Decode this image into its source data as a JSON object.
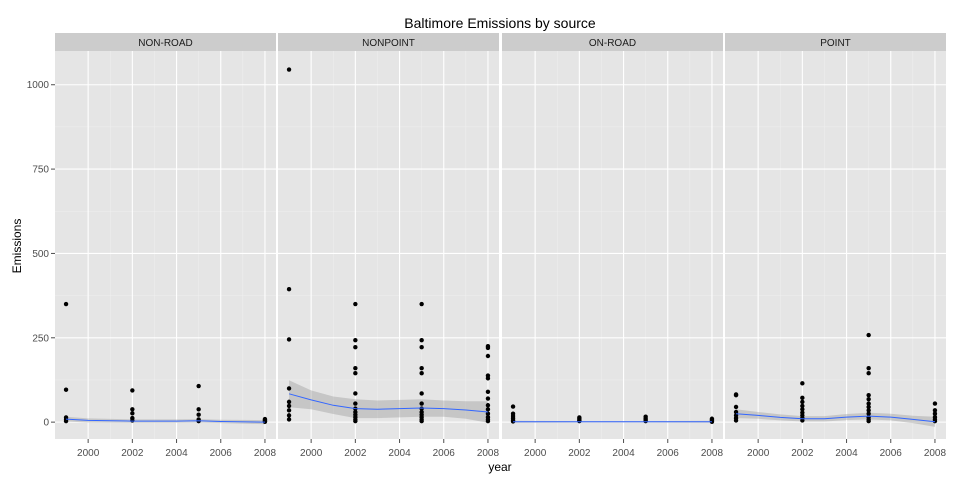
{
  "chart_data": {
    "type": "scatter",
    "title": "Baltimore Emissions by source",
    "xlabel": "year",
    "ylabel": "Emissions",
    "xlim": [
      1998.5,
      2008.5
    ],
    "ylim": [
      -50,
      1100
    ],
    "x_ticks": [
      2000,
      2002,
      2004,
      2006,
      2008
    ],
    "y_ticks": [
      0,
      250,
      500,
      750,
      1000
    ],
    "grid": true,
    "smoother_color": "#3366FF",
    "band_color": "#999999",
    "panel_bg": "#E5E5E5",
    "strip_bg": "#CCCCCC",
    "panels": [
      {
        "name": "NON-ROAD",
        "points": [
          {
            "x": 1999,
            "y": 350
          },
          {
            "x": 1999,
            "y": 96
          },
          {
            "x": 1999,
            "y": 14
          },
          {
            "x": 1999,
            "y": 8
          },
          {
            "x": 1999,
            "y": 3
          },
          {
            "x": 2002,
            "y": 94
          },
          {
            "x": 2002,
            "y": 38
          },
          {
            "x": 2002,
            "y": 26
          },
          {
            "x": 2002,
            "y": 12
          },
          {
            "x": 2002,
            "y": 5
          },
          {
            "x": 2005,
            "y": 107
          },
          {
            "x": 2005,
            "y": 38
          },
          {
            "x": 2005,
            "y": 22
          },
          {
            "x": 2005,
            "y": 8
          },
          {
            "x": 2005,
            "y": 3
          },
          {
            "x": 2008,
            "y": 9
          },
          {
            "x": 2008,
            "y": 6
          },
          {
            "x": 2008,
            "y": 3
          },
          {
            "x": 2008,
            "y": 1
          }
        ],
        "smooth": [
          {
            "x": 1999,
            "y": 9,
            "lo": 2,
            "hi": 16
          },
          {
            "x": 2000,
            "y": 5,
            "lo": -1,
            "hi": 11
          },
          {
            "x": 2002,
            "y": 3,
            "lo": -2,
            "hi": 8
          },
          {
            "x": 2004,
            "y": 3,
            "lo": -2,
            "hi": 8
          },
          {
            "x": 2005,
            "y": 4,
            "lo": -1,
            "hi": 9
          },
          {
            "x": 2006,
            "y": 2,
            "lo": -3,
            "hi": 7
          },
          {
            "x": 2008,
            "y": 0,
            "lo": -6,
            "hi": 6
          }
        ]
      },
      {
        "name": "NONPOINT",
        "points": [
          {
            "x": 1999,
            "y": 1045
          },
          {
            "x": 1999,
            "y": 394
          },
          {
            "x": 1999,
            "y": 245
          },
          {
            "x": 1999,
            "y": 100
          },
          {
            "x": 1999,
            "y": 60
          },
          {
            "x": 1999,
            "y": 48
          },
          {
            "x": 1999,
            "y": 35
          },
          {
            "x": 1999,
            "y": 20
          },
          {
            "x": 1999,
            "y": 8
          },
          {
            "x": 2002,
            "y": 350
          },
          {
            "x": 2002,
            "y": 243
          },
          {
            "x": 2002,
            "y": 222
          },
          {
            "x": 2002,
            "y": 160
          },
          {
            "x": 2002,
            "y": 145
          },
          {
            "x": 2002,
            "y": 85
          },
          {
            "x": 2002,
            "y": 55
          },
          {
            "x": 2002,
            "y": 40
          },
          {
            "x": 2002,
            "y": 30
          },
          {
            "x": 2002,
            "y": 22
          },
          {
            "x": 2002,
            "y": 15
          },
          {
            "x": 2002,
            "y": 8
          },
          {
            "x": 2002,
            "y": 3
          },
          {
            "x": 2005,
            "y": 350
          },
          {
            "x": 2005,
            "y": 243
          },
          {
            "x": 2005,
            "y": 222
          },
          {
            "x": 2005,
            "y": 160
          },
          {
            "x": 2005,
            "y": 145
          },
          {
            "x": 2005,
            "y": 85
          },
          {
            "x": 2005,
            "y": 55
          },
          {
            "x": 2005,
            "y": 40
          },
          {
            "x": 2005,
            "y": 30
          },
          {
            "x": 2005,
            "y": 22
          },
          {
            "x": 2005,
            "y": 15
          },
          {
            "x": 2005,
            "y": 8
          },
          {
            "x": 2005,
            "y": 3
          },
          {
            "x": 2008,
            "y": 225
          },
          {
            "x": 2008,
            "y": 220
          },
          {
            "x": 2008,
            "y": 196
          },
          {
            "x": 2008,
            "y": 138
          },
          {
            "x": 2008,
            "y": 130
          },
          {
            "x": 2008,
            "y": 90
          },
          {
            "x": 2008,
            "y": 70
          },
          {
            "x": 2008,
            "y": 50
          },
          {
            "x": 2008,
            "y": 38
          },
          {
            "x": 2008,
            "y": 25
          },
          {
            "x": 2008,
            "y": 15
          },
          {
            "x": 2008,
            "y": 8
          },
          {
            "x": 2008,
            "y": 3
          }
        ],
        "smooth": [
          {
            "x": 1999,
            "y": 84,
            "lo": 44,
            "hi": 124
          },
          {
            "x": 2000,
            "y": 66,
            "lo": 38,
            "hi": 94
          },
          {
            "x": 2001,
            "y": 50,
            "lo": 24,
            "hi": 76
          },
          {
            "x": 2002,
            "y": 40,
            "lo": 12,
            "hi": 68
          },
          {
            "x": 2003,
            "y": 38,
            "lo": 12,
            "hi": 64
          },
          {
            "x": 2004,
            "y": 40,
            "lo": 14,
            "hi": 66
          },
          {
            "x": 2005,
            "y": 42,
            "lo": 16,
            "hi": 68
          },
          {
            "x": 2006,
            "y": 40,
            "lo": 16,
            "hi": 64
          },
          {
            "x": 2007,
            "y": 36,
            "lo": 10,
            "hi": 62
          },
          {
            "x": 2008,
            "y": 30,
            "lo": -2,
            "hi": 62
          }
        ]
      },
      {
        "name": "ON-ROAD",
        "points": [
          {
            "x": 1999,
            "y": 46
          },
          {
            "x": 1999,
            "y": 25
          },
          {
            "x": 1999,
            "y": 18
          },
          {
            "x": 1999,
            "y": 12
          },
          {
            "x": 1999,
            "y": 6
          },
          {
            "x": 1999,
            "y": 2
          },
          {
            "x": 2002,
            "y": 14
          },
          {
            "x": 2002,
            "y": 10
          },
          {
            "x": 2002,
            "y": 6
          },
          {
            "x": 2002,
            "y": 3
          },
          {
            "x": 2005,
            "y": 16
          },
          {
            "x": 2005,
            "y": 11
          },
          {
            "x": 2005,
            "y": 7
          },
          {
            "x": 2005,
            "y": 3
          },
          {
            "x": 2008,
            "y": 10
          },
          {
            "x": 2008,
            "y": 7
          },
          {
            "x": 2008,
            "y": 4
          },
          {
            "x": 2008,
            "y": 1
          }
        ],
        "smooth": [
          {
            "x": 1999,
            "y": 1,
            "lo": -2,
            "hi": 4
          },
          {
            "x": 2002,
            "y": 1,
            "lo": -1,
            "hi": 3
          },
          {
            "x": 2005,
            "y": 1,
            "lo": -1,
            "hi": 3
          },
          {
            "x": 2008,
            "y": 1,
            "lo": -2,
            "hi": 4
          }
        ]
      },
      {
        "name": "POINT",
        "points": [
          {
            "x": 1999,
            "y": 82
          },
          {
            "x": 1999,
            "y": 80
          },
          {
            "x": 1999,
            "y": 45
          },
          {
            "x": 1999,
            "y": 30
          },
          {
            "x": 1999,
            "y": 20
          },
          {
            "x": 1999,
            "y": 12
          },
          {
            "x": 1999,
            "y": 5
          },
          {
            "x": 2002,
            "y": 115
          },
          {
            "x": 2002,
            "y": 72
          },
          {
            "x": 2002,
            "y": 60
          },
          {
            "x": 2002,
            "y": 48
          },
          {
            "x": 2002,
            "y": 38
          },
          {
            "x": 2002,
            "y": 28
          },
          {
            "x": 2002,
            "y": 20
          },
          {
            "x": 2002,
            "y": 12
          },
          {
            "x": 2002,
            "y": 5
          },
          {
            "x": 2005,
            "y": 258
          },
          {
            "x": 2005,
            "y": 160
          },
          {
            "x": 2005,
            "y": 145
          },
          {
            "x": 2005,
            "y": 80
          },
          {
            "x": 2005,
            "y": 68
          },
          {
            "x": 2005,
            "y": 55
          },
          {
            "x": 2005,
            "y": 45
          },
          {
            "x": 2005,
            "y": 35
          },
          {
            "x": 2005,
            "y": 25
          },
          {
            "x": 2005,
            "y": 15
          },
          {
            "x": 2005,
            "y": 8
          },
          {
            "x": 2005,
            "y": 3
          },
          {
            "x": 2008,
            "y": 55
          },
          {
            "x": 2008,
            "y": 35
          },
          {
            "x": 2008,
            "y": 25
          },
          {
            "x": 2008,
            "y": 15
          },
          {
            "x": 2008,
            "y": 8
          },
          {
            "x": 2008,
            "y": 3
          }
        ],
        "smooth": [
          {
            "x": 1999,
            "y": 25,
            "lo": 12,
            "hi": 38
          },
          {
            "x": 2000,
            "y": 20,
            "lo": 10,
            "hi": 30
          },
          {
            "x": 2001,
            "y": 14,
            "lo": 5,
            "hi": 23
          },
          {
            "x": 2002,
            "y": 10,
            "lo": 2,
            "hi": 18
          },
          {
            "x": 2003,
            "y": 10,
            "lo": 2,
            "hi": 18
          },
          {
            "x": 2004,
            "y": 15,
            "lo": 6,
            "hi": 24
          },
          {
            "x": 2005,
            "y": 18,
            "lo": 8,
            "hi": 28
          },
          {
            "x": 2006,
            "y": 15,
            "lo": 5,
            "hi": 25
          },
          {
            "x": 2007,
            "y": 8,
            "lo": -3,
            "hi": 19
          },
          {
            "x": 2008,
            "y": 1,
            "lo": -14,
            "hi": 16
          }
        ]
      }
    ]
  }
}
